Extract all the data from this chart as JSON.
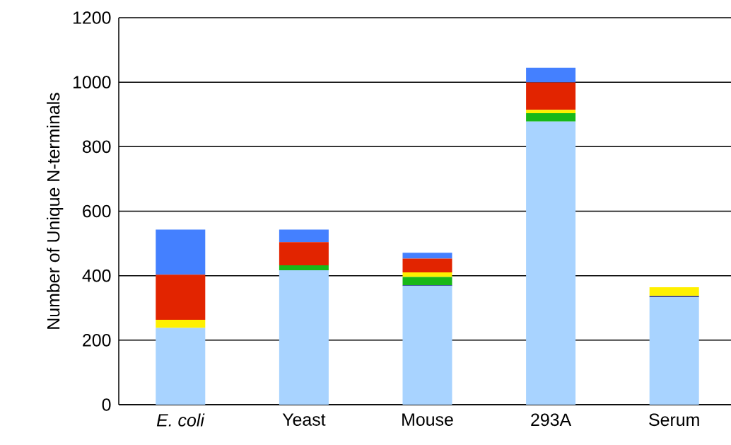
{
  "chart_data": {
    "type": "bar",
    "stacked": true,
    "ylabel": "Number of Unique N-terminals",
    "categories": [
      "*E. coli*",
      "Yeast",
      "Mouse",
      "293A",
      "Serum"
    ],
    "series": [
      {
        "color": "#a8d3ff",
        "values": [
          238,
          417,
          368,
          878,
          333
        ]
      },
      {
        "color": "#1a2a9a",
        "values": [
          null,
          null,
          2,
          null,
          4
        ]
      },
      {
        "color": "#18b818",
        "values": [
          null,
          15,
          26,
          26,
          null
        ]
      },
      {
        "color": "#fff000",
        "values": [
          25,
          null,
          14,
          10,
          27
        ]
      },
      {
        "color": "#e22400",
        "values": [
          140,
          72,
          43,
          85,
          null
        ]
      },
      {
        "color": "#4480ff",
        "values": [
          140,
          39,
          18,
          46,
          null
        ]
      }
    ],
    "ylim": [
      0,
      1200
    ],
    "yticks": [
      0,
      200,
      400,
      600,
      800,
      1000,
      1200
    ],
    "grid": "y"
  }
}
